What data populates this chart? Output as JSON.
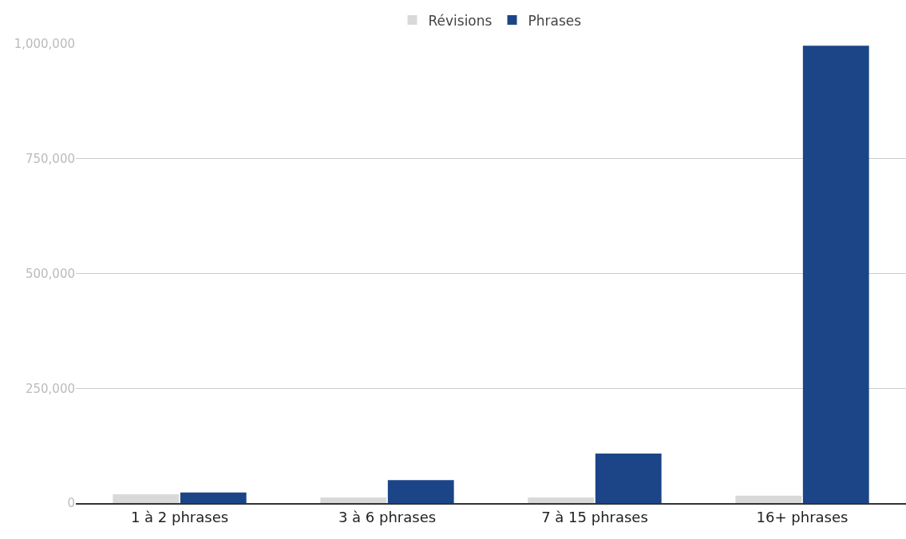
{
  "chart_data": {
    "type": "bar",
    "categories": [
      "1 à 2 phrases",
      "3 à 6 phrases",
      "7 à 15 phrases",
      "16+ phrases"
    ],
    "series": [
      {
        "name": "Révisions",
        "color": "#d9d9d9",
        "values": [
          19000,
          12000,
          12000,
          16000
        ]
      },
      {
        "name": "Phrases",
        "color": "#1c4587",
        "values": [
          23000,
          50000,
          108000,
          996000
        ]
      }
    ],
    "ylim": [
      0,
      1000000
    ],
    "yticks": [
      {
        "value": 0,
        "label": "0"
      },
      {
        "value": 250000,
        "label": "250,000"
      },
      {
        "value": 500000,
        "label": "500,000"
      },
      {
        "value": 750000,
        "label": "750,000"
      },
      {
        "value": 1000000,
        "label": "1,000,000"
      }
    ],
    "grid": "y",
    "legend": "top"
  }
}
